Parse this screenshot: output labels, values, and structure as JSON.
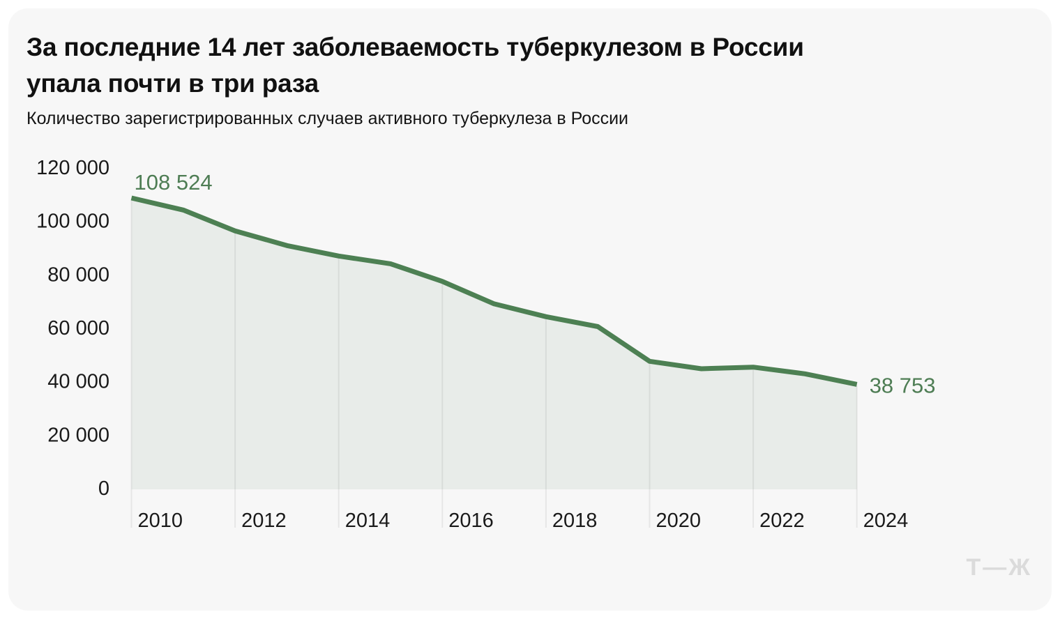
{
  "header": {
    "title_line1": "За последние 14 лет заболеваемость туберкулезом в России",
    "title_line2": "упала почти в три раза",
    "subtitle": "Количество зарегистрированных случаев активного туберкулеза в России"
  },
  "chart_data": {
    "type": "area",
    "title": "За последние 14 лет заболеваемость туберкулезом в России упала почти в три раза",
    "subtitle": "Количество зарегистрированных случаев активного туберкулеза в России",
    "x": [
      2010,
      2011,
      2012,
      2013,
      2014,
      2015,
      2016,
      2017,
      2018,
      2019,
      2020,
      2021,
      2022,
      2023,
      2024
    ],
    "values": [
      108524,
      104000,
      96200,
      90700,
      86800,
      83900,
      77300,
      68900,
      64100,
      60400,
      47400,
      44600,
      45200,
      42700,
      38753
    ],
    "xlabel": "",
    "ylabel": "",
    "ylim": [
      0,
      120000
    ],
    "y_ticks": [
      0,
      20000,
      40000,
      60000,
      80000,
      100000,
      120000
    ],
    "y_tick_labels": [
      "0",
      "20 000",
      "40 000",
      "60 000",
      "80 000",
      "100 000",
      "120 000"
    ],
    "x_ticks": [
      2010,
      2012,
      2014,
      2016,
      2018,
      2020,
      2022,
      2024
    ],
    "x_tick_labels": [
      "2010",
      "2012",
      "2014",
      "2016",
      "2018",
      "2020",
      "2022",
      "2024"
    ],
    "grid": "vertical-only",
    "legend": "none",
    "annotations": [
      {
        "year": 2010,
        "label": "108 524",
        "position": "above-start"
      },
      {
        "year": 2024,
        "label": "38 753",
        "position": "right-of-end"
      }
    ],
    "colors": {
      "line": "#4d8053",
      "fill": "#e8ece9",
      "annotation_text": "#4e7d54",
      "tick_text": "#1a1a1a"
    }
  },
  "footer": {
    "logo": "Т—Ж"
  }
}
